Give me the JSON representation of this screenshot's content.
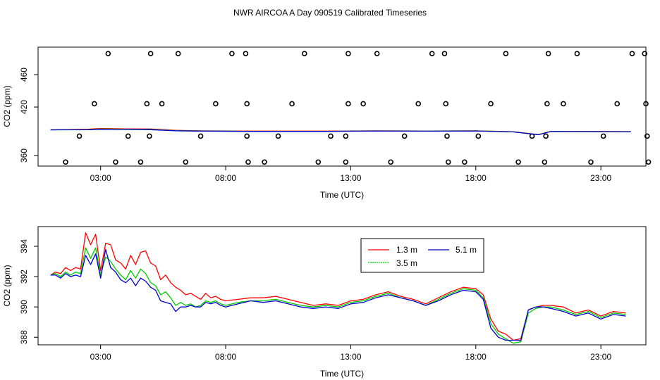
{
  "figure": {
    "title": "NWR AIRCOA A  Day 090519  Calibrated Timeseries"
  },
  "chart_data": [
    {
      "type": "scatter+line",
      "name": "top-panel",
      "xlabel": "Time (UTC)",
      "ylabel": "CO2 (ppm)",
      "xlim": [
        0.5,
        24.8
      ],
      "ylim": [
        347,
        494
      ],
      "xticks": [
        3,
        8,
        13,
        18,
        23
      ],
      "xtick_labels": [
        "03:00",
        "08:00",
        "13:00",
        "18:00",
        "23:00"
      ],
      "yticks": [
        360,
        420,
        460
      ],
      "ytick_labels": [
        "360",
        "420",
        "460"
      ],
      "calibration_points": [
        {
          "x": 1.6,
          "y": 352
        },
        {
          "x": 2.15,
          "y": 384
        },
        {
          "x": 2.75,
          "y": 424
        },
        {
          "x": 3.3,
          "y": 486
        },
        {
          "x": 3.6,
          "y": 352
        },
        {
          "x": 4.1,
          "y": 384
        },
        {
          "x": 4.6,
          "y": 352
        },
        {
          "x": 4.85,
          "y": 424
        },
        {
          "x": 4.95,
          "y": 384
        },
        {
          "x": 5.0,
          "y": 486
        },
        {
          "x": 5.45,
          "y": 424
        },
        {
          "x": 6.1,
          "y": 486
        },
        {
          "x": 6.4,
          "y": 352
        },
        {
          "x": 7.0,
          "y": 384
        },
        {
          "x": 7.6,
          "y": 424
        },
        {
          "x": 8.25,
          "y": 486
        },
        {
          "x": 8.8,
          "y": 486
        },
        {
          "x": 8.85,
          "y": 424
        },
        {
          "x": 8.85,
          "y": 384
        },
        {
          "x": 8.9,
          "y": 352
        },
        {
          "x": 9.55,
          "y": 352
        },
        {
          "x": 10.1,
          "y": 384
        },
        {
          "x": 10.65,
          "y": 424
        },
        {
          "x": 11.15,
          "y": 486
        },
        {
          "x": 11.7,
          "y": 352
        },
        {
          "x": 12.2,
          "y": 384
        },
        {
          "x": 12.8,
          "y": 352
        },
        {
          "x": 12.8,
          "y": 384
        },
        {
          "x": 12.9,
          "y": 424
        },
        {
          "x": 12.9,
          "y": 486
        },
        {
          "x": 13.5,
          "y": 424
        },
        {
          "x": 14.05,
          "y": 486
        },
        {
          "x": 14.6,
          "y": 352
        },
        {
          "x": 15.15,
          "y": 384
        },
        {
          "x": 15.7,
          "y": 424
        },
        {
          "x": 16.25,
          "y": 486
        },
        {
          "x": 16.75,
          "y": 486
        },
        {
          "x": 16.8,
          "y": 424
        },
        {
          "x": 16.85,
          "y": 384
        },
        {
          "x": 16.9,
          "y": 352
        },
        {
          "x": 17.55,
          "y": 352
        },
        {
          "x": 18.1,
          "y": 384
        },
        {
          "x": 18.6,
          "y": 424
        },
        {
          "x": 19.2,
          "y": 486
        },
        {
          "x": 19.7,
          "y": 352
        },
        {
          "x": 20.25,
          "y": 384
        },
        {
          "x": 20.75,
          "y": 352
        },
        {
          "x": 20.8,
          "y": 384
        },
        {
          "x": 20.85,
          "y": 424
        },
        {
          "x": 20.9,
          "y": 486
        },
        {
          "x": 21.5,
          "y": 424
        },
        {
          "x": 22.05,
          "y": 486
        },
        {
          "x": 22.6,
          "y": 352
        },
        {
          "x": 23.1,
          "y": 384
        },
        {
          "x": 23.65,
          "y": 424
        },
        {
          "x": 24.25,
          "y": 486
        },
        {
          "x": 24.75,
          "y": 486
        },
        {
          "x": 24.8,
          "y": 424
        },
        {
          "x": 24.85,
          "y": 384
        },
        {
          "x": 24.9,
          "y": 352
        }
      ],
      "series": [
        {
          "name": "1.3 m",
          "color": "#ff0000",
          "x": [
            1.0,
            2.5,
            3.0,
            4.0,
            5.0,
            6.0,
            7.0,
            9.0,
            12.0,
            14.0,
            16.0,
            18.0,
            19.5,
            20.5,
            21.0,
            23.0,
            24.2
          ],
          "values": [
            391.8,
            392.5,
            393.5,
            393.0,
            392.8,
            391.2,
            390.6,
            390.2,
            390.2,
            390.6,
            390.3,
            390.6,
            389.5,
            386.0,
            389.9,
            389.8,
            389.6
          ]
        },
        {
          "name": "3.5 m",
          "color": "#00cc00",
          "x": [
            1.0,
            2.5,
            3.0,
            4.0,
            5.0,
            6.0,
            7.0,
            9.0,
            12.0,
            14.0,
            16.0,
            18.0,
            19.5,
            20.5,
            21.0,
            23.0,
            24.2
          ],
          "values": [
            391.8,
            392.0,
            392.8,
            392.5,
            392.3,
            390.8,
            390.3,
            390.0,
            390.0,
            390.4,
            390.2,
            390.5,
            389.3,
            385.8,
            389.8,
            389.6,
            389.5
          ]
        },
        {
          "name": "5.1 m",
          "color": "#0000cc",
          "x": [
            1.0,
            2.5,
            3.0,
            4.0,
            5.0,
            6.0,
            7.0,
            9.0,
            12.0,
            14.0,
            16.0,
            18.0,
            19.5,
            20.5,
            21.0,
            23.0,
            24.2
          ],
          "values": [
            391.8,
            391.9,
            392.5,
            392.2,
            392.0,
            390.6,
            390.2,
            389.9,
            389.9,
            390.3,
            390.1,
            390.4,
            389.2,
            385.7,
            389.7,
            389.5,
            389.4
          ]
        }
      ]
    },
    {
      "type": "line",
      "name": "bottom-panel",
      "xlabel": "Time (UTC)",
      "ylabel": "CO2 (ppm)",
      "xlim": [
        0.5,
        24.8
      ],
      "ylim": [
        387.5,
        395.3
      ],
      "xticks": [
        3,
        8,
        13,
        18,
        23
      ],
      "xtick_labels": [
        "03:00",
        "08:00",
        "13:00",
        "18:00",
        "23:00"
      ],
      "yticks": [
        388,
        390,
        392,
        394
      ],
      "ytick_labels": [
        "388",
        "390",
        "392",
        "394"
      ],
      "legend": {
        "position": "top-right-center",
        "entries": [
          "1.3 m",
          "3.5 m",
          "5.1 m"
        ]
      },
      "series": [
        {
          "name": "1.3 m",
          "color": "#ff0000",
          "x": [
            1.0,
            1.2,
            1.4,
            1.6,
            1.8,
            2.0,
            2.2,
            2.4,
            2.6,
            2.8,
            3.0,
            3.2,
            3.4,
            3.6,
            3.8,
            4.0,
            4.2,
            4.4,
            4.6,
            4.8,
            5.0,
            5.2,
            5.4,
            5.6,
            5.8,
            6.0,
            6.2,
            6.4,
            6.6,
            6.8,
            7.0,
            7.2,
            7.4,
            7.6,
            7.8,
            8.0,
            8.5,
            9.0,
            9.5,
            10.0,
            10.5,
            11.0,
            11.5,
            12.0,
            12.5,
            13.0,
            13.5,
            14.0,
            14.5,
            15.0,
            15.5,
            16.0,
            16.5,
            17.0,
            17.5,
            18.0,
            18.3,
            18.6,
            18.9,
            19.2,
            19.5,
            19.8,
            20.1,
            20.4,
            20.7,
            21.0,
            21.5,
            22.0,
            22.5,
            23.0,
            23.5,
            24.0
          ],
          "values": [
            392.1,
            392.3,
            392.2,
            392.6,
            392.4,
            392.6,
            392.5,
            394.9,
            394.1,
            394.8,
            392.4,
            394.2,
            394.1,
            393.1,
            392.9,
            392.5,
            393.4,
            392.8,
            393.6,
            393.7,
            392.9,
            392.7,
            391.8,
            392.1,
            391.6,
            391.3,
            391.1,
            390.8,
            390.9,
            390.7,
            390.5,
            390.9,
            390.6,
            390.7,
            390.5,
            390.4,
            390.5,
            390.6,
            390.6,
            390.7,
            390.5,
            390.3,
            390.1,
            390.2,
            390.1,
            390.4,
            390.5,
            390.8,
            391.0,
            390.7,
            390.5,
            390.2,
            390.6,
            391.0,
            391.3,
            391.2,
            390.8,
            389.2,
            388.4,
            388.2,
            387.8,
            387.9,
            389.8,
            390.0,
            390.1,
            390.1,
            390.0,
            389.6,
            389.8,
            389.4,
            389.7,
            389.6
          ]
        },
        {
          "name": "3.5 m",
          "color": "#00cc00",
          "x": [
            1.0,
            1.2,
            1.4,
            1.6,
            1.8,
            2.0,
            2.2,
            2.4,
            2.6,
            2.8,
            3.0,
            3.2,
            3.4,
            3.6,
            3.8,
            4.0,
            4.2,
            4.4,
            4.6,
            4.8,
            5.0,
            5.2,
            5.4,
            5.6,
            5.8,
            6.0,
            6.2,
            6.4,
            6.6,
            6.8,
            7.0,
            7.2,
            7.4,
            7.6,
            7.8,
            8.0,
            8.5,
            9.0,
            9.5,
            10.0,
            10.5,
            11.0,
            11.5,
            12.0,
            12.5,
            13.0,
            13.5,
            14.0,
            14.5,
            15.0,
            15.5,
            16.0,
            16.5,
            17.0,
            17.5,
            18.0,
            18.3,
            18.6,
            18.9,
            19.2,
            19.5,
            19.8,
            20.1,
            20.4,
            20.7,
            21.0,
            21.5,
            22.0,
            22.5,
            23.0,
            23.5,
            24.0
          ],
          "values": [
            392.1,
            392.2,
            392.0,
            392.3,
            392.1,
            392.3,
            392.2,
            393.9,
            393.2,
            393.9,
            392.1,
            393.3,
            393.0,
            392.5,
            392.1,
            391.8,
            392.4,
            391.9,
            392.5,
            392.2,
            391.6,
            391.4,
            390.8,
            391.0,
            390.6,
            390.1,
            390.3,
            390.1,
            390.2,
            390.0,
            390.1,
            390.4,
            390.3,
            390.4,
            390.2,
            390.1,
            390.3,
            390.4,
            390.4,
            390.5,
            390.3,
            390.1,
            390.0,
            390.1,
            390.0,
            390.3,
            390.4,
            390.7,
            390.9,
            390.6,
            390.4,
            390.1,
            390.5,
            390.9,
            391.2,
            391.1,
            390.6,
            388.9,
            388.2,
            387.9,
            387.6,
            387.7,
            389.6,
            389.9,
            390.0,
            390.0,
            389.8,
            389.5,
            389.7,
            389.3,
            389.6,
            389.5
          ]
        },
        {
          "name": "5.1 m",
          "color": "#0000cc",
          "x": [
            1.0,
            1.2,
            1.4,
            1.6,
            1.8,
            2.0,
            2.2,
            2.4,
            2.6,
            2.8,
            3.0,
            3.2,
            3.4,
            3.6,
            3.8,
            4.0,
            4.2,
            4.4,
            4.6,
            4.8,
            5.0,
            5.2,
            5.4,
            5.6,
            5.8,
            6.0,
            6.2,
            6.4,
            6.6,
            6.8,
            7.0,
            7.2,
            7.4,
            7.6,
            7.8,
            8.0,
            8.5,
            9.0,
            9.5,
            10.0,
            10.5,
            11.0,
            11.5,
            12.0,
            12.5,
            13.0,
            13.5,
            14.0,
            14.5,
            15.0,
            15.5,
            16.0,
            16.5,
            17.0,
            17.5,
            18.0,
            18.3,
            18.6,
            18.9,
            19.2,
            19.5,
            19.8,
            20.1,
            20.4,
            20.7,
            21.0,
            21.5,
            22.0,
            22.5,
            23.0,
            23.5,
            24.0
          ],
          "values": [
            392.1,
            392.1,
            391.9,
            392.2,
            392.0,
            392.1,
            392.0,
            393.4,
            392.8,
            393.5,
            391.9,
            393.8,
            392.6,
            392.3,
            391.8,
            391.6,
            391.9,
            391.4,
            391.9,
            391.7,
            391.3,
            391.1,
            390.4,
            390.3,
            390.2,
            389.7,
            390.0,
            390.0,
            390.1,
            390.0,
            390.0,
            390.3,
            390.2,
            390.3,
            390.1,
            390.0,
            390.2,
            390.4,
            390.3,
            390.4,
            390.2,
            390.0,
            389.9,
            390.0,
            389.9,
            390.2,
            390.3,
            390.6,
            390.8,
            390.6,
            390.4,
            390.1,
            390.4,
            390.8,
            391.1,
            391.0,
            390.5,
            388.6,
            388.0,
            387.8,
            387.8,
            387.8,
            389.8,
            390.0,
            390.0,
            389.9,
            389.7,
            389.4,
            389.6,
            389.2,
            389.5,
            389.4
          ]
        }
      ]
    }
  ]
}
